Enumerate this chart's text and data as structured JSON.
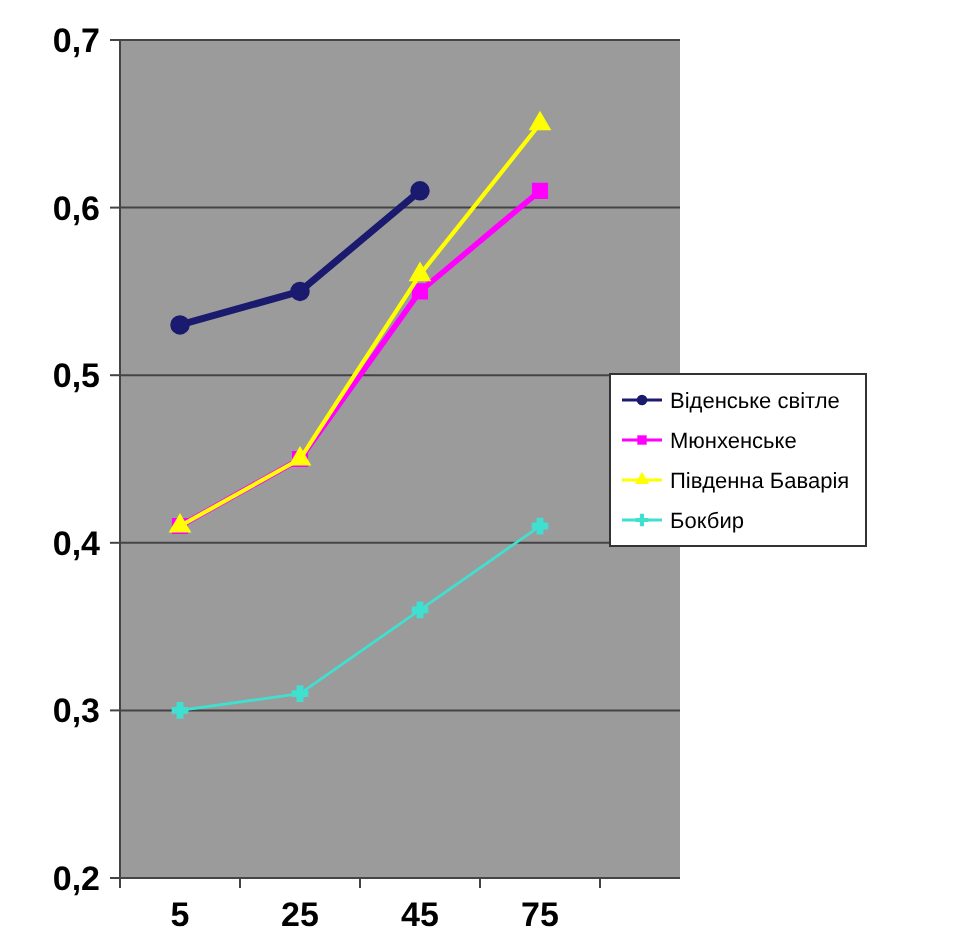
{
  "chart_data": {
    "type": "line",
    "categories": [
      "5",
      "25",
      "45",
      "75"
    ],
    "ylim": [
      0.2,
      0.7
    ],
    "yticks": [
      {
        "value": 0.2,
        "label": "0,2"
      },
      {
        "value": 0.3,
        "label": "0,3"
      },
      {
        "value": 0.4,
        "label": "0,4"
      },
      {
        "value": 0.5,
        "label": "0,5"
      },
      {
        "value": 0.6,
        "label": "0,6"
      },
      {
        "value": 0.7,
        "label": "0,7"
      }
    ],
    "grid": "y",
    "legend": "right",
    "series": [
      {
        "name": "Віденське світле",
        "color": "#1a1a6e",
        "marker": "circle",
        "values": [
          0.53,
          0.55,
          0.61,
          null
        ]
      },
      {
        "name": "Мюнхенське",
        "color": "#ff00ff",
        "marker": "square",
        "values": [
          0.41,
          0.45,
          0.55,
          0.61
        ]
      },
      {
        "name": "Південна Баварія",
        "color": "#ffff00",
        "marker": "triangle",
        "values": [
          0.41,
          0.45,
          0.56,
          0.65
        ]
      },
      {
        "name": "Бокбир",
        "color": "#40e0d0",
        "marker": "cross",
        "values": [
          0.3,
          0.31,
          0.36,
          0.41
        ]
      }
    ]
  }
}
